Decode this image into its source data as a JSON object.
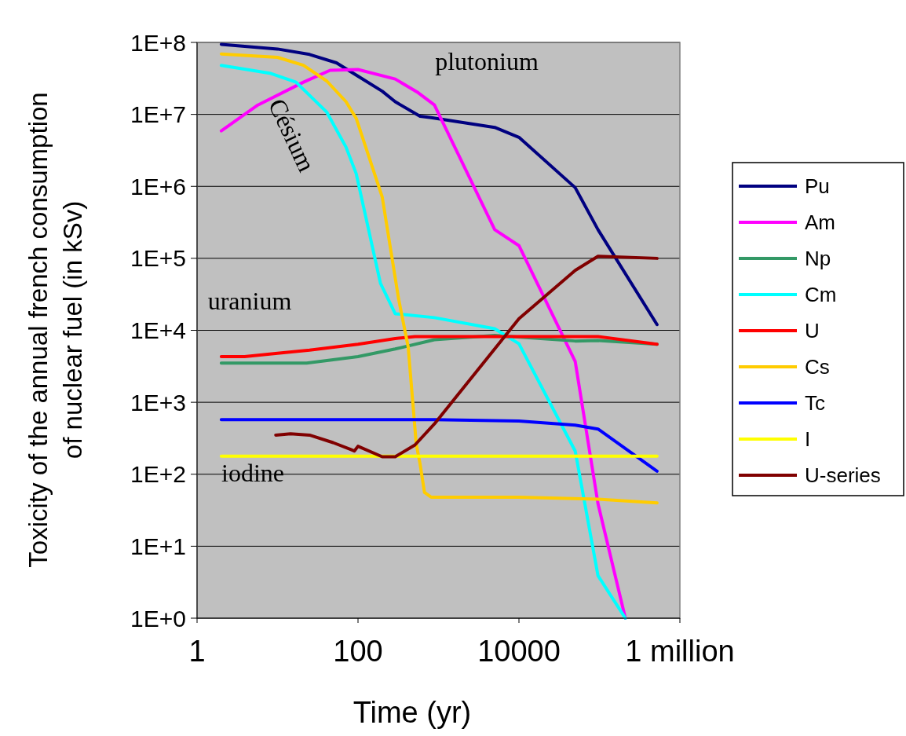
{
  "chart_data": {
    "type": "line",
    "xlabel": "Time (yr)",
    "ylabel": "Toxicity of the annual french consumption\nof nuclear fuel (in kSv)",
    "log": "xy",
    "grid": "y",
    "legend": "right",
    "line_style": "solid",
    "xlim": [
      1,
      1000000
    ],
    "xticks": [
      1,
      100,
      10000,
      {
        "value": 1000000,
        "label": "1 million"
      }
    ],
    "ylim": [
      1,
      100000000
    ],
    "yticks": [
      {
        "value": 1,
        "label": "1E+0"
      },
      {
        "value": 10,
        "label": "1E+1"
      },
      {
        "value": 100,
        "label": "1E+2"
      },
      {
        "value": 1000,
        "label": "1E+3"
      },
      {
        "value": 10000,
        "label": "1E+4"
      },
      {
        "value": 100000,
        "label": "1E+5"
      },
      {
        "value": 1000000,
        "label": "1E+6"
      },
      {
        "value": 10000000,
        "label": "1E+7"
      },
      {
        "value": 100000000,
        "label": "1E+8"
      }
    ],
    "annotations": [
      "plutonium",
      "Césium",
      "uranium",
      "iodine"
    ],
    "series": [
      {
        "name": "Pu",
        "color": "#000080",
        "x": [
          2,
          10,
          25,
          54,
          100,
          200,
          290,
          590,
          810,
          5000,
          10000,
          50000,
          96000,
          520000
        ],
        "values": [
          94000000,
          81000000,
          68000000,
          52000000,
          34000000,
          21000000,
          15000000,
          9400000,
          9000000,
          6600000,
          4800000,
          960000,
          250000,
          12000
        ]
      },
      {
        "name": "Am",
        "color": "#ff00ff",
        "x": [
          2,
          5.7,
          21,
          45,
          100,
          290,
          560,
          890,
          1070,
          5000,
          10000,
          50000,
          96000,
          210000
        ],
        "values": [
          5900000,
          13500000,
          28000000,
          41000000,
          42000000,
          31000000,
          20000000,
          13500000,
          8800000,
          250000,
          150000,
          3700,
          39,
          1
        ]
      },
      {
        "name": "Np",
        "color": "#339966",
        "x": [
          2,
          23,
          100,
          290,
          890,
          5000,
          50000,
          96000,
          520000
        ],
        "values": [
          3500,
          3500,
          4300,
          5500,
          7400,
          8500,
          7100,
          7200,
          6400
        ]
      },
      {
        "name": "Cm",
        "color": "#00ffff",
        "x": [
          2,
          8.3,
          17,
          41,
          71,
          95,
          190,
          290,
          890,
          5000,
          10000,
          50000,
          96000,
          210000
        ],
        "values": [
          48000000,
          37000000,
          28000000,
          10700000,
          3500000,
          1500000,
          45000,
          17000,
          15000,
          10500,
          6500,
          210,
          3.9,
          1
        ]
      },
      {
        "name": "U",
        "color": "#ff0000",
        "x": [
          2,
          3.9,
          10,
          25,
          100,
          290,
          510,
          10000,
          96000,
          520000
        ],
        "values": [
          4300,
          4300,
          4800,
          5300,
          6400,
          7700,
          8200,
          8200,
          8200,
          6400
        ]
      },
      {
        "name": "Cs",
        "color": "#ffcc00",
        "x": [
          2,
          10,
          21,
          41,
          71,
          95,
          200,
          320,
          420,
          530,
          590,
          670,
          810,
          10000,
          96000,
          520000
        ],
        "values": [
          69000000,
          62000000,
          48000000,
          29000000,
          15000000,
          8800000,
          710000,
          27000,
          5900,
          260,
          140,
          56,
          48,
          48,
          45,
          40
        ]
      },
      {
        "name": "Tc",
        "color": "#0000ff",
        "x": [
          2,
          890,
          10000,
          50000,
          96000,
          520000
        ],
        "values": [
          575,
          575,
          550,
          480,
          425,
          110
        ]
      },
      {
        "name": "I",
        "color": "#ffff00",
        "x": [
          2,
          520000
        ],
        "values": [
          178,
          178
        ]
      },
      {
        "name": "U-series",
        "color": "#800000",
        "x": [
          9.5,
          14.5,
          25,
          49,
          82,
          90,
          100,
          200,
          290,
          510,
          890,
          10000,
          50000,
          96000,
          520000
        ],
        "values": [
          350,
          365,
          350,
          275,
          220,
          210,
          245,
          175,
          175,
          255,
          500,
          14500,
          68000,
          107000,
          100000
        ]
      }
    ]
  }
}
